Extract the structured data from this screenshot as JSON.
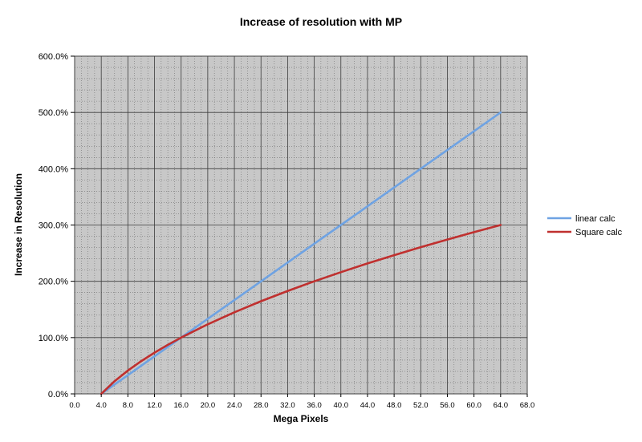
{
  "chart_data": {
    "type": "line",
    "title": "Increase of resolution with MP",
    "xlabel": "Mega Pixels",
    "ylabel": "Increase in Resolution",
    "xlim": [
      0,
      68
    ],
    "ylim": [
      0,
      600
    ],
    "x_ticks": [
      0,
      4,
      8,
      12,
      16,
      20,
      24,
      28,
      32,
      36,
      40,
      44,
      48,
      52,
      56,
      60,
      64,
      68
    ],
    "x_tick_labels": [
      "0.0",
      "4.0",
      "8.0",
      "12.0",
      "16.0",
      "20.0",
      "24.0",
      "28.0",
      "32.0",
      "36.0",
      "40.0",
      "44.0",
      "48.0",
      "52.0",
      "56.0",
      "60.0",
      "64.0",
      "68.0"
    ],
    "y_ticks": [
      0,
      100,
      200,
      300,
      400,
      500,
      600
    ],
    "y_tick_labels": [
      "0.0%",
      "100.0%",
      "200.0%",
      "300.0%",
      "400.0%",
      "500.0%",
      "600.0%"
    ],
    "grid": true,
    "legend_position": "right",
    "x": [
      4,
      6,
      8,
      10,
      12,
      14,
      16,
      20,
      24,
      28,
      32,
      36,
      40,
      44,
      48,
      52,
      56,
      60,
      64
    ],
    "series": [
      {
        "name": "linear calc",
        "color": "#6fa3e3",
        "values": [
          0,
          16.7,
          33.3,
          50,
          66.7,
          83.3,
          100,
          133.3,
          166.7,
          200,
          233.3,
          266.7,
          300,
          333.3,
          366.7,
          400,
          433.3,
          466.7,
          500
        ]
      },
      {
        "name": "Square calc",
        "color": "#c0302f",
        "values": [
          0,
          22.5,
          41.4,
          58.1,
          73.2,
          87.1,
          100,
          123.6,
          144.9,
          164.6,
          182.8,
          200,
          216.2,
          231.7,
          246.4,
          260.6,
          274.2,
          287.3,
          300
        ]
      }
    ]
  }
}
